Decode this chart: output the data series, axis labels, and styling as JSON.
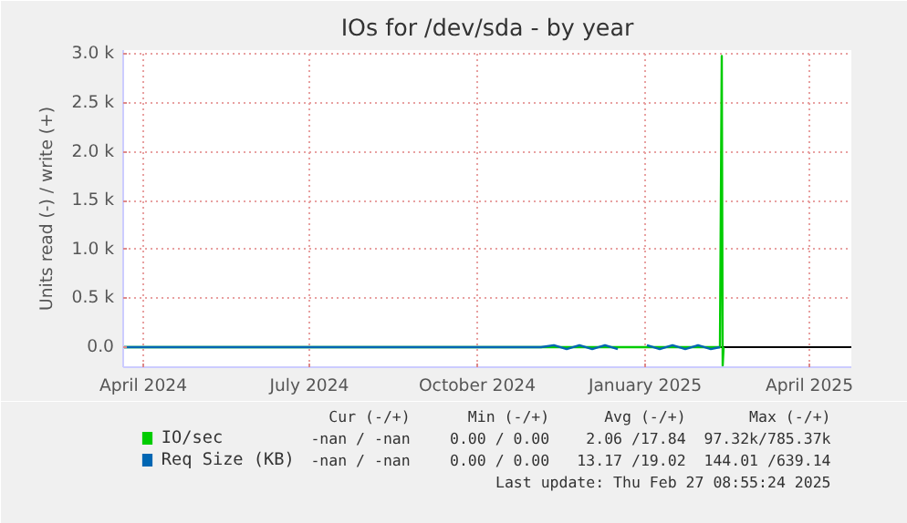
{
  "chart_data": {
    "type": "line",
    "title": "IOs for /dev/sda - by year",
    "ylabel": "Units read (-) / write (+)",
    "xlim": [
      "2024-03-21",
      "2025-04-24"
    ],
    "ylim": [
      -205,
      3040
    ],
    "xticks": [
      {
        "value": "2024-04-01",
        "label": "April 2024"
      },
      {
        "value": "2024-07-01",
        "label": "July 2024"
      },
      {
        "value": "2024-10-01",
        "label": "October 2024"
      },
      {
        "value": "2025-01-01",
        "label": "January 2025"
      },
      {
        "value": "2025-04-01",
        "label": "April 2025"
      }
    ],
    "yticks": [
      {
        "value": 0,
        "label": "0.0"
      },
      {
        "value": 500,
        "label": "0.5 k"
      },
      {
        "value": 1000,
        "label": "1.0 k"
      },
      {
        "value": 1500,
        "label": "1.5 k"
      },
      {
        "value": 2000,
        "label": "2.0 k"
      },
      {
        "value": 2500,
        "label": "2.5 k"
      },
      {
        "value": 3000,
        "label": "3.0 k"
      }
    ],
    "grid": true,
    "legend": "bottom",
    "ref_lines": [
      {
        "axis": "y",
        "value": 0,
        "color": "#000000"
      }
    ],
    "series": [
      {
        "name": "IO/sec",
        "color": "#00cc00",
        "x": [
          "2024-03-21",
          "2025-02-11",
          "2025-02-12",
          "2025-02-12T12:00",
          "2025-02-13"
        ],
        "values": [
          0,
          0,
          2980,
          -190,
          0
        ]
      },
      {
        "name": "Req Size (KB)",
        "color": "#0066b3",
        "x": [
          "2024-03-21",
          "2024-11-05",
          "2024-11-12",
          "2024-11-19",
          "2024-11-26",
          "2024-12-03",
          "2024-12-10",
          "2024-12-17",
          "2024-12-21",
          "2025-01-02",
          "2025-01-09",
          "2025-01-16",
          "2025-01-23",
          "2025-01-30",
          "2025-02-06",
          "2025-02-11"
        ],
        "values": [
          0,
          0,
          20,
          -20,
          20,
          -20,
          20,
          -20,
          null,
          20,
          -20,
          20,
          -20,
          20,
          -20,
          0
        ]
      }
    ],
    "annotations": [
      "Cur (-/+)",
      "Min (-/+)",
      "Avg (-/+)",
      "Max (-/+)",
      "-nan / -nan",
      "0.00 / 0.00",
      "2.06 /17.84",
      "97.32k/785.37k",
      "-nan / -nan",
      "0.00 / 0.00",
      "13.17 /19.02",
      "144.01 /639.14",
      "Last update: Thu Feb 27 08:55:24 2025"
    ]
  }
}
